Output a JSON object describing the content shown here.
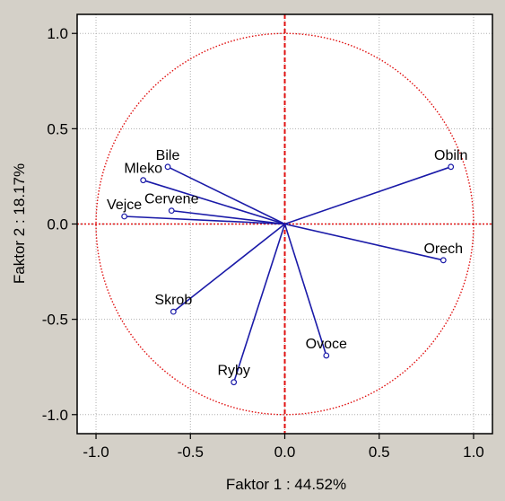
{
  "chart_data": {
    "type": "scatter",
    "subtype": "factor-loadings-biplot",
    "title": "",
    "xlabel": "Faktor 1 : 44.52%",
    "ylabel": "Faktor 2 : 18.17%",
    "xlim": [
      -1.1,
      1.1
    ],
    "ylim": [
      -1.1,
      1.1
    ],
    "xticks": [
      "-1.0",
      "-0.5",
      "0.0",
      "0.5",
      "1.0"
    ],
    "yticks": [
      "1.0",
      "0.5",
      "0.0",
      "-0.5",
      "-1.0"
    ],
    "grid": true,
    "unit_circle": true,
    "points": [
      {
        "label": "Bile",
        "x": -0.62,
        "y": 0.3
      },
      {
        "label": "Mleko",
        "x": -0.75,
        "y": 0.23
      },
      {
        "label": "Cervene",
        "x": -0.6,
        "y": 0.07
      },
      {
        "label": "Vejce",
        "x": -0.85,
        "y": 0.04
      },
      {
        "label": "Obiln",
        "x": 0.88,
        "y": 0.3
      },
      {
        "label": "Orech",
        "x": 0.84,
        "y": -0.19
      },
      {
        "label": "Skrob",
        "x": -0.59,
        "y": -0.46
      },
      {
        "label": "Ovoce",
        "x": 0.22,
        "y": -0.69
      },
      {
        "label": "Ryby",
        "x": -0.27,
        "y": -0.83
      }
    ],
    "colors": {
      "background": "#d4d0c8",
      "plot_area": "#ffffff",
      "vector": "#1a1aa8",
      "reference": "#e01010",
      "grid": "#b0b0b0"
    }
  }
}
